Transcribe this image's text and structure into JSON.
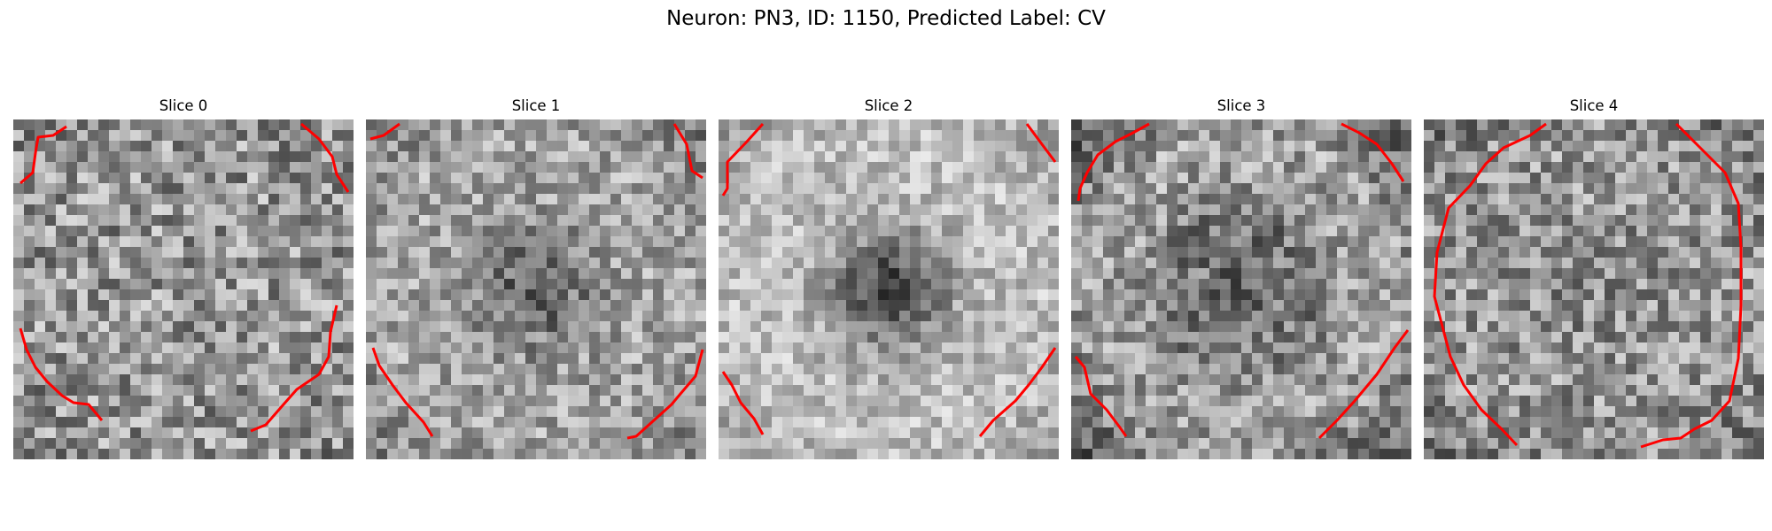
{
  "figure": {
    "title": "Neuron: PN3, ID: 1150, Predicted Label: CV"
  },
  "slices": [
    {
      "title": "Slice 0"
    },
    {
      "title": "Slice 1"
    },
    {
      "title": "Slice 2"
    },
    {
      "title": "Slice 3"
    },
    {
      "title": "Slice 4"
    }
  ],
  "colors": {
    "contour": "#ff0000"
  }
}
